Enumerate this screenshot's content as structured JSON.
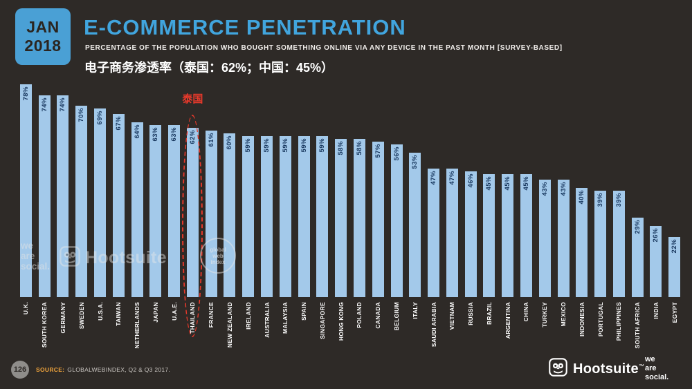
{
  "slide": {
    "badge": {
      "month": "JAN",
      "year": "2018"
    },
    "title": "E-COMMERCE PENETRATION",
    "subtitle": "PERCENTAGE OF THE POPULATION WHO BOUGHT SOMETHING ONLINE VIA ANY DEVICE IN THE PAST MONTH [SURVEY-BASED]",
    "subtitle_zh": "电子商务渗透率（泰国：62%；中国：45%）"
  },
  "annotation": {
    "label": "泰国",
    "country": "THAILAND",
    "color": "#e8392b"
  },
  "chart_data": {
    "type": "bar",
    "title": "E-COMMERCE PENETRATION",
    "xlabel": "",
    "ylabel": "Percentage of population who bought something online in the past month",
    "unit": "%",
    "ylim": [
      0,
      80
    ],
    "grid": false,
    "legend": "none",
    "bar_color": "#a3c9ea",
    "value_label_color": "#17365d",
    "category_label_color": "#ffffff",
    "categories": [
      "U.K.",
      "SOUTH KOREA",
      "GERMANY",
      "SWEDEN",
      "U.S.A.",
      "TAIWAN",
      "NETHERLANDS",
      "JAPAN",
      "U.A.E.",
      "THAILAND",
      "FRANCE",
      "NEW ZEALAND",
      "IRELAND",
      "AUSTRALIA",
      "MALAYSIA",
      "SPAIN",
      "SINGAPORE",
      "HONG KONG",
      "POLAND",
      "CANADA",
      "BELGIUM",
      "ITALY",
      "SAUDI ARABIA",
      "VIETNAM",
      "RUSSIA",
      "BRAZIL",
      "ARGENTINA",
      "CHINA",
      "TURKEY",
      "MEXICO",
      "INDONESIA",
      "PORTUGAL",
      "PHILIPPINES",
      "SOUTH AFRICA",
      "INDIA",
      "EGYPT"
    ],
    "values": [
      78,
      74,
      74,
      70,
      69,
      67,
      64,
      63,
      63,
      62,
      61,
      60,
      59,
      59,
      59,
      59,
      59,
      58,
      58,
      57,
      56,
      53,
      47,
      47,
      46,
      45,
      45,
      45,
      43,
      43,
      40,
      39,
      39,
      29,
      26,
      22
    ]
  },
  "watermarks": {
    "we_are_social_lines": [
      "we",
      "are",
      "social."
    ],
    "hootsuite": "Hootsuite",
    "gwi_lines": [
      "global",
      "web",
      "index"
    ]
  },
  "footer": {
    "page": "126",
    "source_label": "SOURCE:",
    "source_text": "GLOBALWEBINDEX, Q2 & Q3 2017.",
    "hootsuite": "Hootsuite",
    "hootsuite_tm": "™",
    "we_are_social_lines": [
      "we",
      "are",
      "social."
    ]
  },
  "colors": {
    "background": "#2e2a27",
    "badge_bg": "#4aa0d5",
    "title": "#41a5de",
    "accent_red": "#e8392b",
    "source_orange": "#f0a43c"
  }
}
